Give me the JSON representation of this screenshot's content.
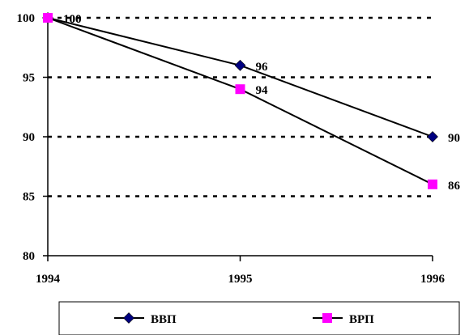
{
  "chart_data": {
    "type": "line",
    "title": "",
    "xlabel": "",
    "ylabel": "",
    "categories": [
      "1994",
      "1995",
      "1996"
    ],
    "ylim": [
      80,
      100
    ],
    "yticks": [
      "80",
      "85",
      "90",
      "95",
      "100"
    ],
    "grid": "horizontal dashed",
    "legend_position": "bottom",
    "series": [
      {
        "name": "ВВП",
        "values": [
          100,
          96,
          90
        ],
        "labels": [
          "100",
          "96",
          "90"
        ],
        "color": "#000080",
        "marker": "diamond"
      },
      {
        "name": "ВРП",
        "values": [
          100,
          94,
          86
        ],
        "labels": [
          "100",
          "94",
          "86"
        ],
        "color": "#FF00FF",
        "marker": "square"
      }
    ]
  }
}
